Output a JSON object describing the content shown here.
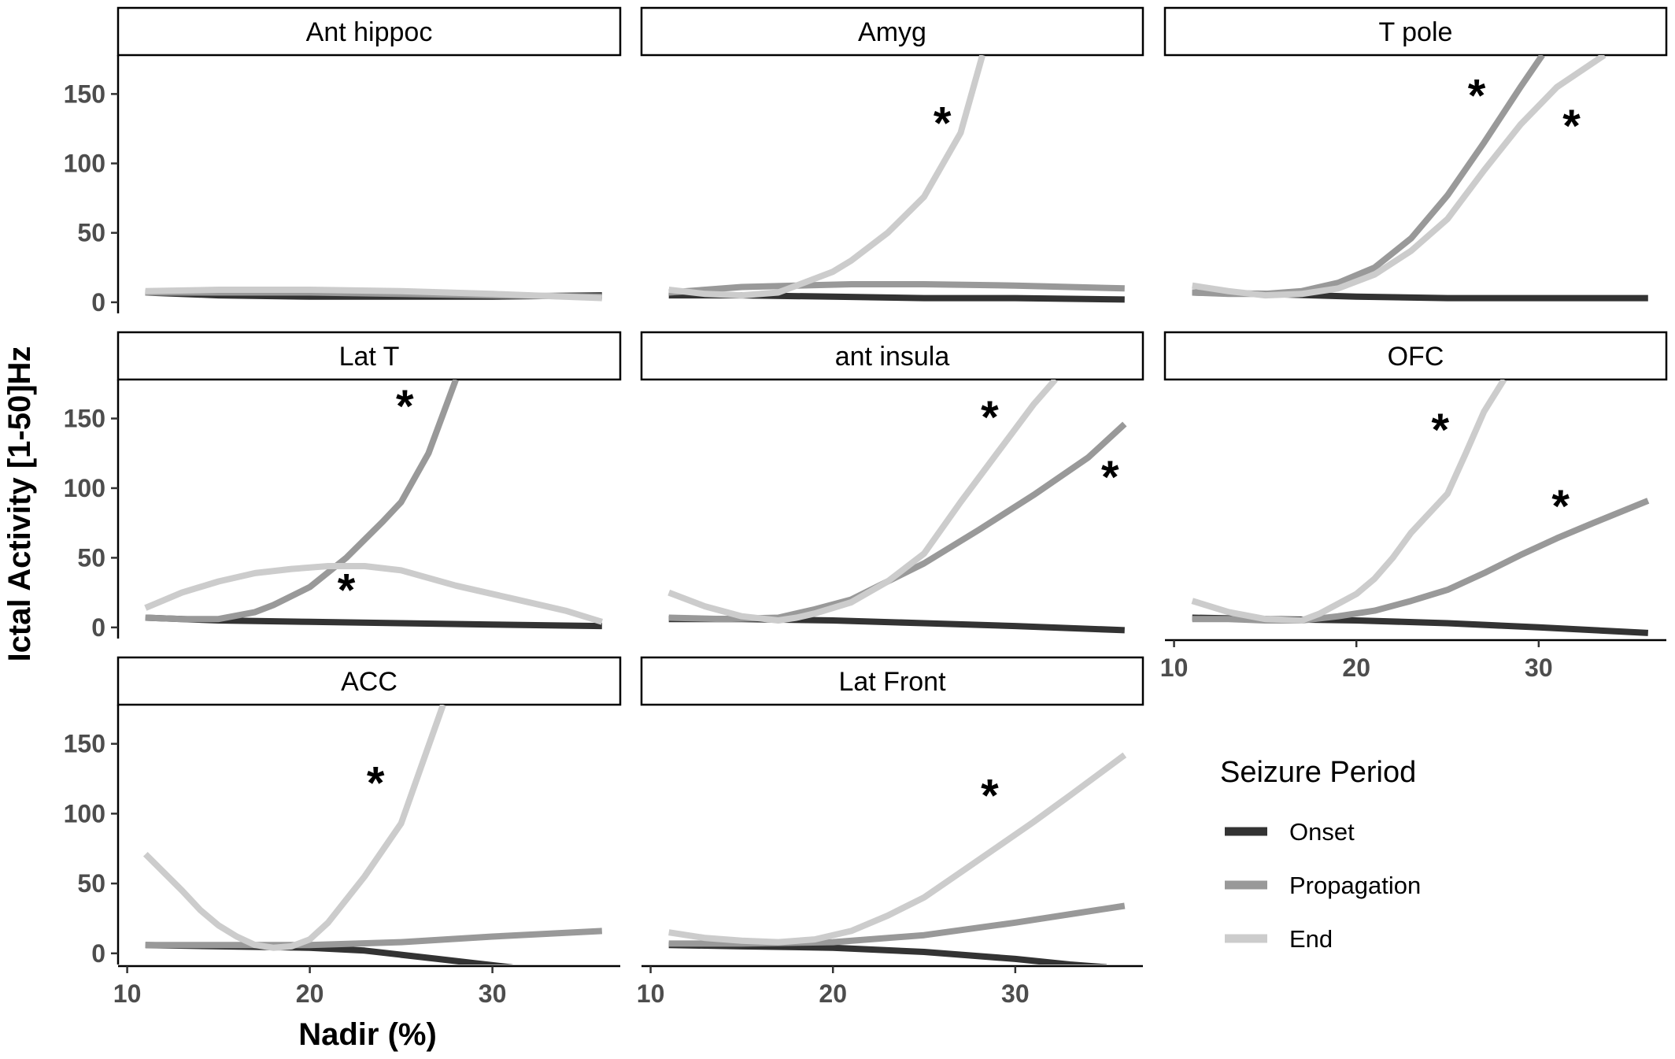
{
  "chart_data": {
    "type": "line",
    "xlabel": "Nadir (%)",
    "ylabel": "Ictal Activity [1-50]Hz",
    "xlim": [
      9.5,
      37
    ],
    "ylim": [
      -8,
      178
    ],
    "x_ticks": [
      "10",
      "20",
      "30"
    ],
    "y_ticks": [
      "0",
      "50",
      "100",
      "150"
    ],
    "grid": false,
    "legend": {
      "title": "Seizure Period",
      "placement": "right",
      "entries": [
        {
          "name": "Onset",
          "color": "#333333"
        },
        {
          "name": "Propagation",
          "color": "#999999"
        },
        {
          "name": "End",
          "color": "#cccccc"
        }
      ]
    },
    "panels": [
      {
        "title": "Ant hippoc",
        "series": [
          {
            "name": "Onset",
            "x": [
              11,
              15,
              20,
              25,
              30,
              36
            ],
            "y": [
              7,
              5,
              4,
              4,
              4,
              5
            ]
          },
          {
            "name": "Propagation",
            "x": [
              11,
              15,
              20,
              25,
              30,
              36
            ],
            "y": [
              7,
              7,
              7,
              6,
              5,
              4
            ]
          },
          {
            "name": "End",
            "x": [
              11,
              15,
              20,
              25,
              30,
              36
            ],
            "y": [
              8,
              9,
              9,
              8,
              6,
              3
            ]
          }
        ],
        "asterisks": []
      },
      {
        "title": "Amyg",
        "series": [
          {
            "name": "Onset",
            "x": [
              11,
              15,
              20,
              25,
              30,
              36
            ],
            "y": [
              5,
              5,
              4,
              3,
              3,
              2
            ]
          },
          {
            "name": "Propagation",
            "x": [
              11,
              13,
              15,
              18,
              21,
              25,
              30,
              36
            ],
            "y": [
              7,
              9,
              11,
              12,
              13,
              13,
              12,
              10
            ]
          },
          {
            "name": "End",
            "x": [
              11,
              13,
              15,
              17,
              18,
              20,
              21,
              23,
              25,
              27,
              28.2
            ],
            "y": [
              9,
              6,
              5,
              7,
              12,
              22,
              30,
              50,
              76,
              122,
              178
            ]
          }
        ],
        "asterisks": [
          {
            "x": 26,
            "y": 130
          }
        ]
      },
      {
        "title": "T pole",
        "series": [
          {
            "name": "Onset",
            "x": [
              11,
              15,
              20,
              25,
              30,
              36
            ],
            "y": [
              7,
              6,
              4,
              3,
              3,
              3
            ]
          },
          {
            "name": "Propagation",
            "x": [
              11,
              13,
              15,
              17,
              19,
              21,
              23,
              25,
              27,
              29,
              30.2
            ],
            "y": [
              7,
              6,
              6,
              8,
              14,
              25,
              46,
              77,
              115,
              155,
              178
            ]
          },
          {
            "name": "End",
            "x": [
              11,
              13,
              15,
              17,
              19,
              21,
              23,
              25,
              27,
              29,
              31,
              33.6
            ],
            "y": [
              12,
              8,
              5,
              6,
              10,
              20,
              37,
              60,
              95,
              128,
              155,
              178
            ]
          }
        ],
        "asterisks": [
          {
            "x": 26.6,
            "y": 150
          },
          {
            "x": 31.8,
            "y": 128
          }
        ]
      },
      {
        "title": "Lat T",
        "series": [
          {
            "name": "Onset",
            "x": [
              11,
              15,
              20,
              25,
              30,
              36
            ],
            "y": [
              7,
              5,
              4,
              3,
              2,
              1
            ]
          },
          {
            "name": "Propagation",
            "x": [
              11,
              13,
              15,
              17,
              18,
              20,
              22,
              24,
              25,
              26.5,
              28
            ],
            "y": [
              7,
              6,
              6,
              11,
              16,
              29,
              50,
              76,
              90,
              125,
              178
            ]
          },
          {
            "name": "End",
            "x": [
              11,
              13,
              15,
              17,
              19,
              21,
              23,
              25,
              28,
              31,
              34,
              36
            ],
            "y": [
              14,
              25,
              33,
              39,
              42,
              44,
              44,
              41,
              30,
              21,
              12,
              4
            ]
          }
        ],
        "asterisks": [
          {
            "x": 25.2,
            "y": 160
          },
          {
            "x": 22,
            "y": 28
          }
        ]
      },
      {
        "title": "ant insula",
        "series": [
          {
            "name": "Onset",
            "x": [
              11,
              15,
              20,
              25,
              30,
              36
            ],
            "y": [
              6,
              6,
              5,
              3,
              1,
              -2
            ]
          },
          {
            "name": "Propagation",
            "x": [
              11,
              14,
              17,
              19,
              21,
              23,
              25,
              28,
              31,
              34,
              36
            ],
            "y": [
              7,
              6,
              7,
              13,
              20,
              33,
              46,
              70,
              95,
              122,
              146
            ]
          },
          {
            "name": "End",
            "x": [
              11,
              13,
              15,
              17,
              18,
              19,
              21,
              23,
              25,
              27,
              29,
              31,
              32.2
            ],
            "y": [
              25,
              15,
              8,
              5,
              7,
              10,
              18,
              33,
              53,
              90,
              125,
              160,
              178
            ]
          }
        ],
        "asterisks": [
          {
            "x": 28.6,
            "y": 152
          },
          {
            "x": 35.2,
            "y": 109
          }
        ]
      },
      {
        "title": "OFC",
        "series": [
          {
            "name": "Onset",
            "x": [
              11,
              15,
              20,
              25,
              30,
              36
            ],
            "y": [
              7,
              6,
              5,
              3,
              0,
              -4
            ]
          },
          {
            "name": "Propagation",
            "x": [
              11,
              13,
              15,
              17,
              19,
              21,
              23,
              25,
              27,
              29,
              31,
              33,
              36
            ],
            "y": [
              6,
              6,
              5,
              5,
              8,
              12,
              19,
              27,
              39,
              52,
              64,
              75,
              91
            ]
          },
          {
            "name": "End",
            "x": [
              11,
              13,
              15,
              17,
              18,
              19,
              20,
              21,
              22,
              23,
              25,
              26,
              27,
              28.1
            ],
            "y": [
              19,
              11,
              6,
              5,
              10,
              17,
              24,
              35,
              50,
              68,
              96,
              125,
              155,
              178
            ]
          }
        ],
        "asterisks": [
          {
            "x": 24.6,
            "y": 143
          },
          {
            "x": 31.2,
            "y": 88
          }
        ]
      },
      {
        "title": "ACC",
        "series": [
          {
            "name": "Onset",
            "x": [
              11,
              15,
              20,
              23,
              25,
              27,
              29,
              31,
              32
            ],
            "y": [
              6,
              5,
              4,
              2,
              -1,
              -4,
              -7,
              -10,
              -12
            ]
          },
          {
            "name": "Propagation",
            "x": [
              11,
              15,
              20,
              25,
              30,
              36
            ],
            "y": [
              6,
              6,
              6,
              8,
              12,
              16
            ]
          },
          {
            "name": "End",
            "x": [
              11,
              13,
              14,
              15,
              16,
              17,
              18,
              19,
              20,
              21,
              23,
              25,
              26,
              27.3
            ],
            "y": [
              71,
              45,
              31,
              20,
              12,
              6,
              4,
              5,
              10,
              22,
              55,
              93,
              130,
              178
            ]
          }
        ],
        "asterisks": [
          {
            "x": 23.6,
            "y": 123
          }
        ]
      },
      {
        "title": "Lat Front",
        "series": [
          {
            "name": "Onset",
            "x": [
              11,
              15,
              20,
              25,
              30,
              33,
              35
            ],
            "y": [
              6,
              5,
              4,
              1,
              -4,
              -8,
              -10
            ]
          },
          {
            "name": "Propagation",
            "x": [
              11,
              15,
              20,
              25,
              30,
              36
            ],
            "y": [
              7,
              7,
              8,
              13,
              22,
              34
            ]
          },
          {
            "name": "End",
            "x": [
              11,
              13,
              15,
              17,
              19,
              21,
              23,
              25,
              27,
              29,
              31,
              33,
              36
            ],
            "y": [
              15,
              11,
              9,
              8,
              10,
              16,
              27,
              40,
              58,
              76,
              94,
              113,
              142
            ]
          }
        ],
        "asterisks": [
          {
            "x": 28.6,
            "y": 114
          }
        ]
      }
    ]
  }
}
